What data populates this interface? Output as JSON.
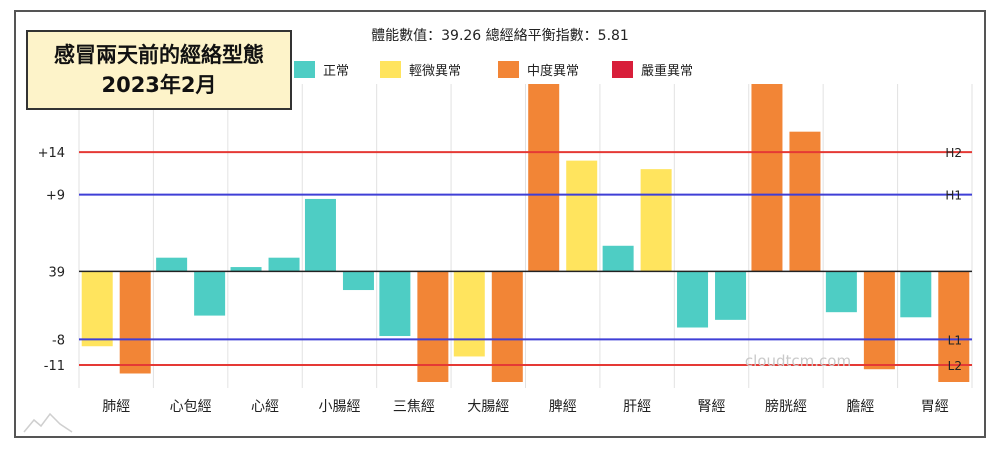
{
  "title_box": {
    "line1": "感冒兩天前的經絡型態",
    "line2": "2023年2月"
  },
  "watermark": "cloudtcm.com",
  "chart_data": {
    "type": "bar",
    "subtitle": "體能數值：39.26 總經絡平衡指數：5.81",
    "center_value": 39,
    "y_tick_labels": [
      "+14",
      "+9",
      "39",
      "-8",
      "-11"
    ],
    "y_tick_values": [
      14,
      9,
      0,
      -8,
      -11
    ],
    "ylim": [
      -13,
      22
    ],
    "categories": [
      "肺經",
      "心包經",
      "心經",
      "小腸經",
      "三焦經",
      "大腸經",
      "脾經",
      "肝經",
      "腎經",
      "膀胱經",
      "膽經",
      "胃經"
    ],
    "legend": [
      {
        "name": "正常",
        "color": "#4ecdc4"
      },
      {
        "name": "輕微異常",
        "color": "#ffe45e"
      },
      {
        "name": "中度異常",
        "color": "#f28536"
      },
      {
        "name": "嚴重異常",
        "color": "#d81e3a"
      }
    ],
    "reference_lines": [
      {
        "label": "H2",
        "value": 14,
        "color": "#e53935"
      },
      {
        "label": "H1",
        "value": 9,
        "color": "#3f3fd6"
      },
      {
        "label": "L1",
        "value": -8,
        "color": "#3f3fd6"
      },
      {
        "label": "L2",
        "value": -11,
        "color": "#e53935"
      }
    ],
    "bars": [
      {
        "category": "肺經",
        "side": "left",
        "value": -8.8,
        "level": "輕微異常"
      },
      {
        "category": "肺經",
        "side": "right",
        "value": -12,
        "level": "中度異常"
      },
      {
        "category": "心包經",
        "side": "left",
        "value": 1.6,
        "level": "正常"
      },
      {
        "category": "心包經",
        "side": "right",
        "value": -5.2,
        "level": "正常"
      },
      {
        "category": "心經",
        "side": "left",
        "value": 0.5,
        "level": "正常"
      },
      {
        "category": "心經",
        "side": "right",
        "value": 1.6,
        "level": "正常"
      },
      {
        "category": "小腸經",
        "side": "left",
        "value": 8.5,
        "level": "正常"
      },
      {
        "category": "小腸經",
        "side": "right",
        "value": -2.2,
        "level": "正常"
      },
      {
        "category": "三焦經",
        "side": "left",
        "value": -7.6,
        "level": "正常"
      },
      {
        "category": "三焦經",
        "side": "right",
        "value": -13,
        "level": "中度異常"
      },
      {
        "category": "大腸經",
        "side": "left",
        "value": -10,
        "level": "輕微異常"
      },
      {
        "category": "大腸經",
        "side": "right",
        "value": -13,
        "level": "中度異常"
      },
      {
        "category": "脾經",
        "side": "left",
        "value": 22,
        "level": "中度異常"
      },
      {
        "category": "脾經",
        "side": "right",
        "value": 13,
        "level": "輕微異常"
      },
      {
        "category": "肝經",
        "side": "left",
        "value": 3,
        "level": "正常"
      },
      {
        "category": "肝經",
        "side": "right",
        "value": 12,
        "level": "輕微異常"
      },
      {
        "category": "腎經",
        "side": "left",
        "value": -6.6,
        "level": "正常"
      },
      {
        "category": "腎經",
        "side": "right",
        "value": -5.7,
        "level": "正常"
      },
      {
        "category": "膀胱經",
        "side": "left",
        "value": 22,
        "level": "中度異常"
      },
      {
        "category": "膀胱經",
        "side": "right",
        "value": 16.4,
        "level": "中度異常"
      },
      {
        "category": "膽經",
        "side": "left",
        "value": -4.8,
        "level": "正常"
      },
      {
        "category": "膽經",
        "side": "right",
        "value": -11.5,
        "level": "中度異常"
      },
      {
        "category": "胃經",
        "side": "left",
        "value": -5.4,
        "level": "正常"
      },
      {
        "category": "胃經",
        "side": "right",
        "value": -13,
        "level": "中度異常"
      }
    ]
  }
}
